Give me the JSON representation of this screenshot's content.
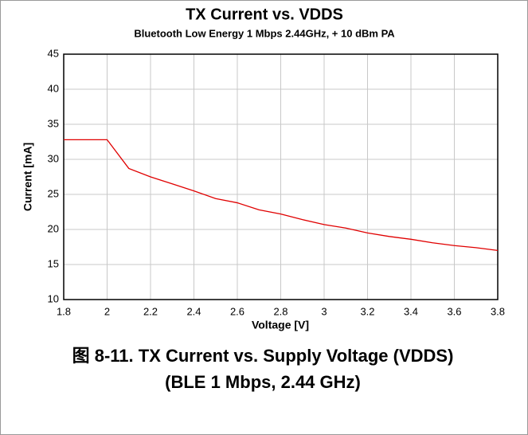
{
  "chart_data": {
    "type": "line",
    "title": "TX Current vs. VDDS",
    "subtitle": "Bluetooth Low Energy 1 Mbps 2.44GHz, + 10 dBm PA",
    "x_label": "Voltage [V]",
    "y_label": "Current [mA]",
    "x": [
      1.8,
      1.9,
      2.0,
      2.1,
      2.2,
      2.3,
      2.4,
      2.5,
      2.6,
      2.7,
      2.8,
      2.9,
      3.0,
      3.1,
      3.2,
      3.3,
      3.4,
      3.5,
      3.6,
      3.7,
      3.8
    ],
    "series": [
      {
        "name": "TX Current",
        "color": "#e00000",
        "values": [
          32.8,
          32.8,
          32.8,
          28.7,
          27.5,
          26.5,
          25.5,
          24.4,
          23.8,
          22.8,
          22.2,
          21.4,
          20.7,
          20.2,
          19.5,
          19.0,
          18.6,
          18.1,
          17.7,
          17.4,
          17.0
        ]
      }
    ],
    "xlim": [
      1.8,
      3.8
    ],
    "xticks": [
      1.8,
      2,
      2.2,
      2.4,
      2.6,
      2.8,
      3,
      3.2,
      3.4,
      3.6,
      3.8
    ],
    "ylim": [
      10,
      45
    ],
    "yticks": [
      10,
      15,
      20,
      25,
      30,
      35,
      40,
      45
    ],
    "grid": true,
    "caption": [
      "图 8-11. TX Current vs. Supply Voltage (VDDS)",
      "(BLE 1 Mbps, 2.44 GHz)"
    ]
  }
}
